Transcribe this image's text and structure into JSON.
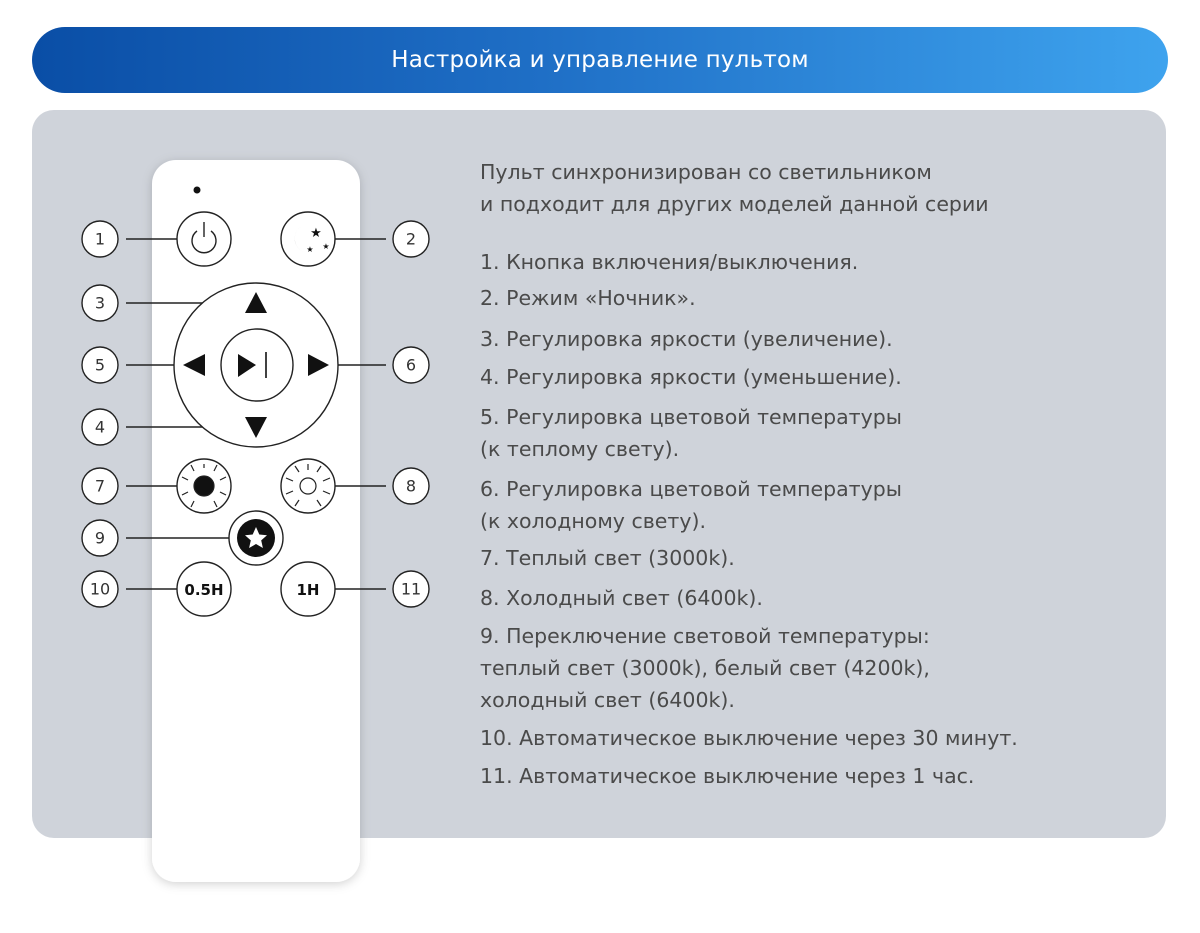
{
  "header": {
    "title": "Настройка и управление пультом"
  },
  "intro": [
    "Пульт синхронизирован со светильником",
    "и подходит для других моделей данной серии"
  ],
  "items": [
    [
      "1. Кнопка включения/выключения."
    ],
    [
      "2. Режим «Ночник»."
    ],
    [
      "3. Регулировка яркости (увеличение)."
    ],
    [
      "4. Регулировка яркости (уменьшение)."
    ],
    [
      "5. Регулировка цветовой температуры",
      "(к теплому свету)."
    ],
    [
      "6. Регулировка цветовой температуры",
      "(к холодному свету)."
    ],
    [
      "7.  Теплый свет (3000k)."
    ],
    [
      "8. Холодный свет (6400k)."
    ],
    [
      "9. Переключение световой температуры:",
      "теплый свет (3000k), белый свет (4200k),",
      "холодный свет (6400k)."
    ],
    [
      "10. Автоматическое выключение через 30 минут."
    ],
    [
      "11. Автоматическое выключение через 1 час."
    ]
  ],
  "remote": {
    "callouts": [
      "1",
      "2",
      "3",
      "4",
      "5",
      "6",
      "7",
      "8",
      "9",
      "10",
      "11"
    ],
    "timer_30_label": "0.5H",
    "timer_60_label": "1H"
  },
  "colors": {
    "header_start": "#0a4ea6",
    "header_end": "#3ea3ee",
    "panel": "#cfd3da",
    "text": "#4a4a4a"
  }
}
